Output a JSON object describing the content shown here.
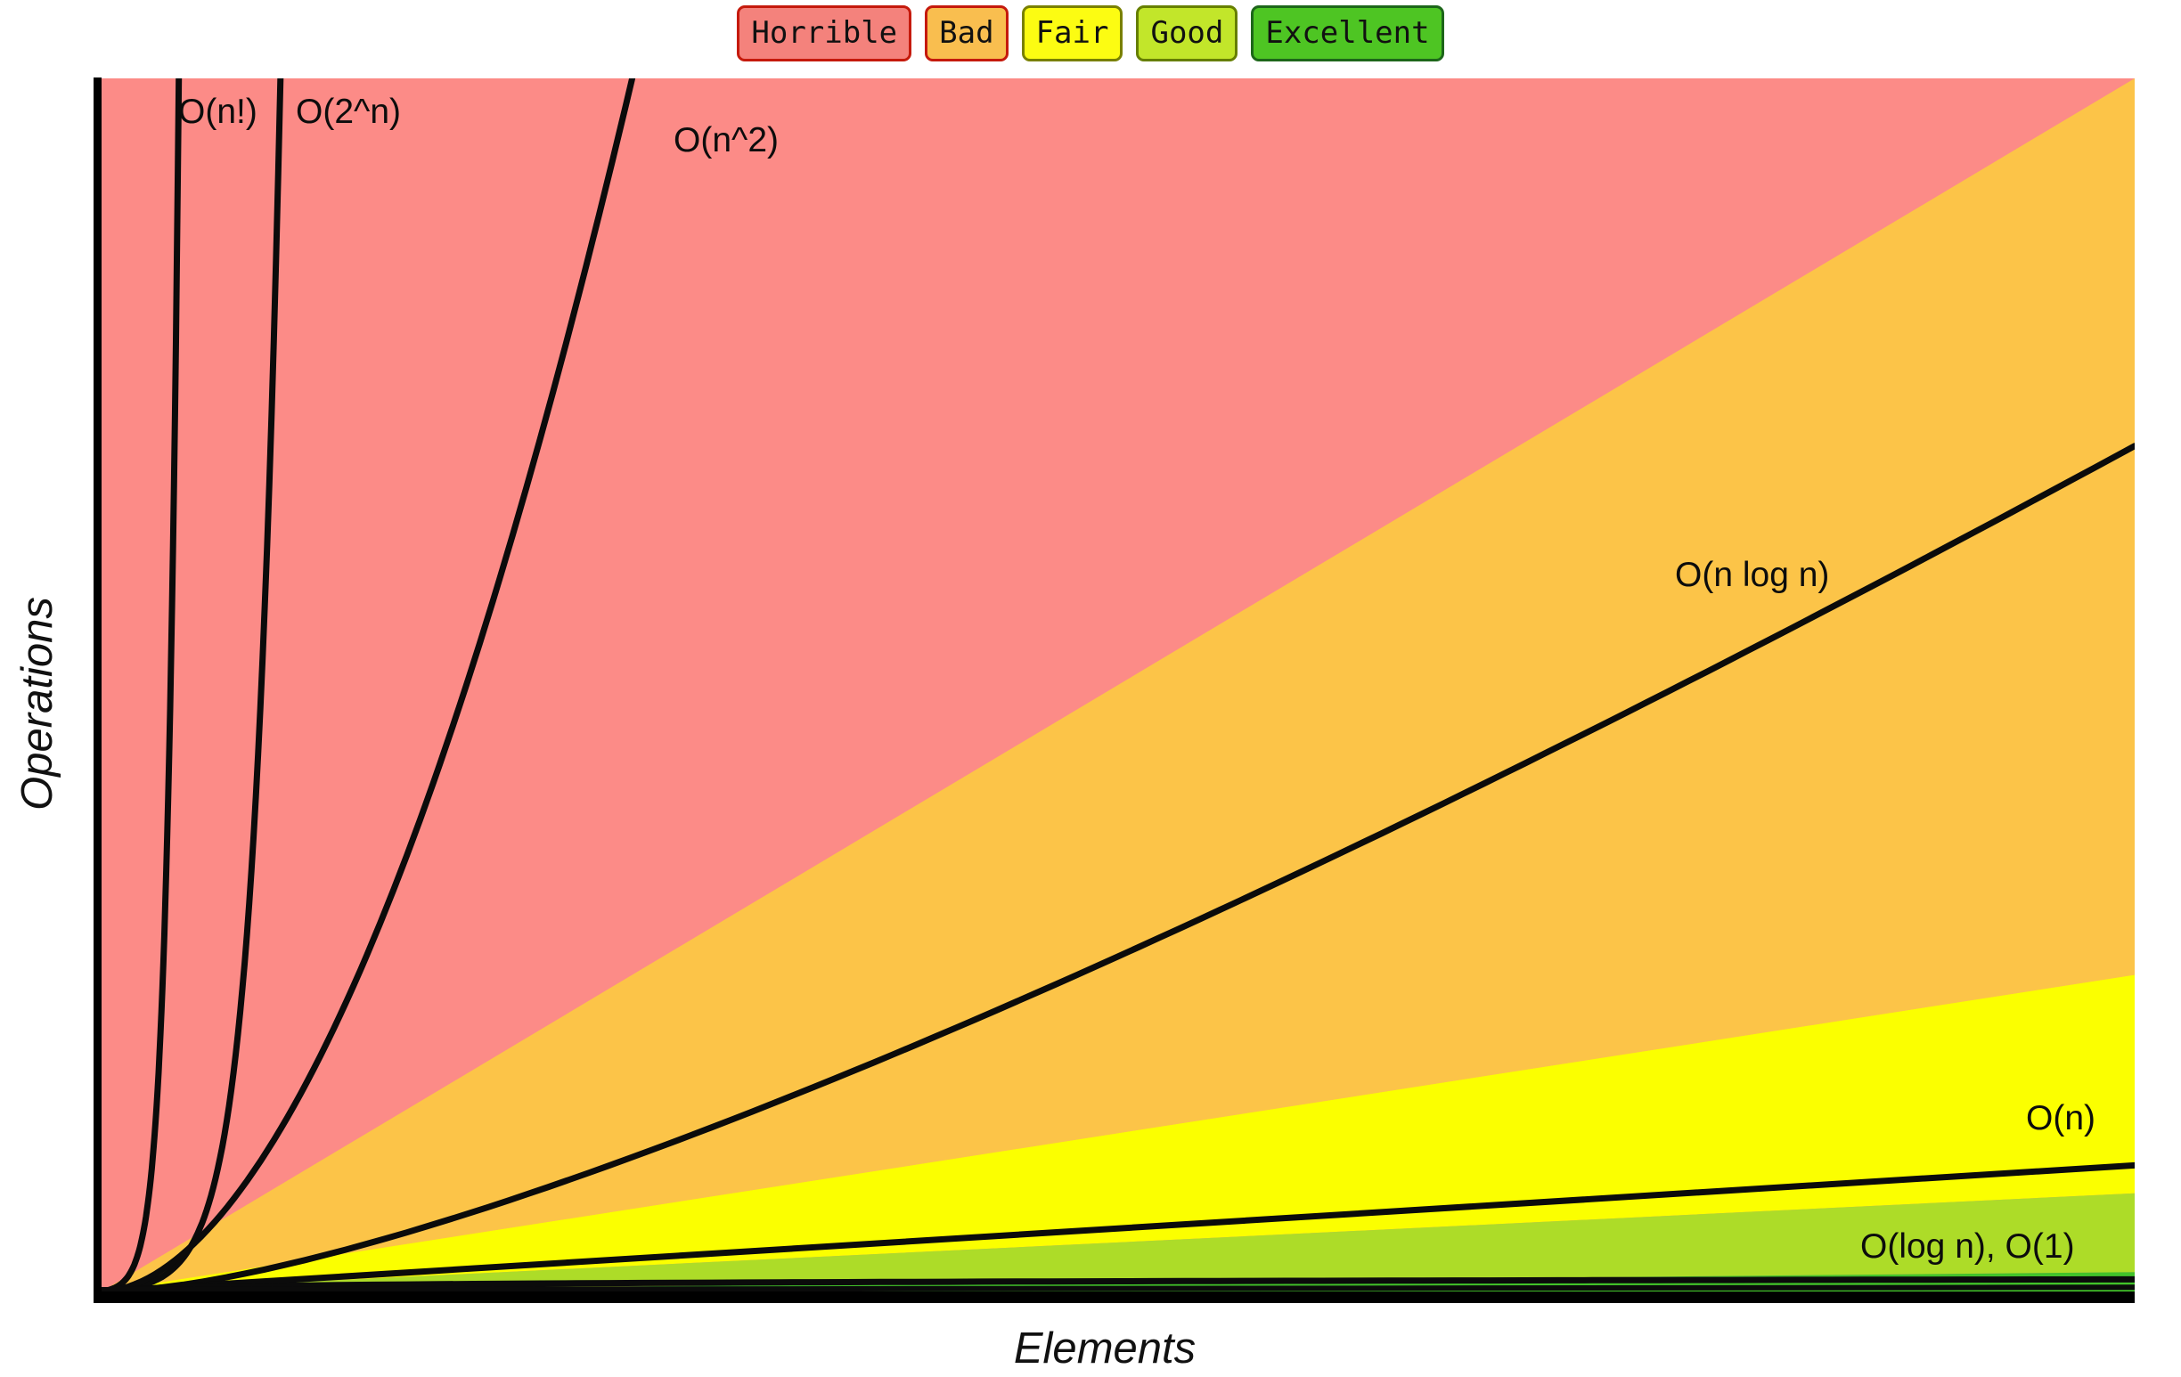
{
  "legend": {
    "items": [
      {
        "label": "Horrible",
        "fill": "#f4827c",
        "border": "#c51a0c"
      },
      {
        "label": "Bad",
        "fill": "#f9be4f",
        "border": "#c51a0c"
      },
      {
        "label": "Fair",
        "fill": "#fcfc12",
        "border": "#798000"
      },
      {
        "label": "Good",
        "fill": "#c2e62a",
        "border": "#667f00"
      },
      {
        "label": "Excellent",
        "fill": "#4ec523",
        "border": "#1d661a"
      }
    ]
  },
  "axis_labels": {
    "x": "Elements",
    "y": "Operations"
  },
  "curve_labels": {
    "n_factorial": "O(n!)",
    "two_pow_n": "O(2^n)",
    "n_squared": "O(n^2)",
    "n_log_n": "O(n log n)",
    "n_linear": "O(n)",
    "log_n_const": "O(log n), O(1)"
  },
  "colors": {
    "curve": "#0b0b0b",
    "axis": "#000000"
  },
  "chart_data": {
    "type": "area",
    "xlabel": "Elements",
    "ylabel": "Operations",
    "grid": false,
    "legend_position": "top-center",
    "regions": [
      {
        "name": "Horrible",
        "color": "#fc8b87",
        "background": true,
        "right_edge_height_frac": [
          1.0,
          1.0
        ]
      },
      {
        "name": "Bad",
        "color": "#fcc448",
        "background": false,
        "right_edge_height_frac": [
          0.261,
          1.0
        ]
      },
      {
        "name": "Fair",
        "color": "#fbff00",
        "background": false,
        "right_edge_height_frac": [
          0.081,
          0.261
        ]
      },
      {
        "name": "Good",
        "color": "#addc28",
        "background": false,
        "right_edge_height_frac": [
          0.016,
          0.081
        ]
      },
      {
        "name": "Excellent",
        "color": "#42c32a",
        "background": false,
        "right_edge_height_frac": [
          0.0,
          0.016
        ]
      }
    ],
    "curves": [
      {
        "label": "O(n!)",
        "kind": "factorial",
        "top_crossing_x_frac": 0.038
      },
      {
        "label": "O(2^n)",
        "kind": "exponential",
        "top_crossing_x_frac": 0.088
      },
      {
        "label": "O(n^2)",
        "kind": "quadratic",
        "top_crossing_x_frac": 0.261
      },
      {
        "label": "O(n log n)",
        "kind": "linearithmic",
        "right_edge_height_frac": 0.697
      },
      {
        "label": "O(n)",
        "kind": "linear",
        "right_edge_height_frac": 0.104
      },
      {
        "label": "O(log n)",
        "kind": "logarithmic",
        "right_edge_height_frac": 0.01
      },
      {
        "label": "O(1)",
        "kind": "constant",
        "right_edge_height_frac": 0.002
      }
    ]
  }
}
